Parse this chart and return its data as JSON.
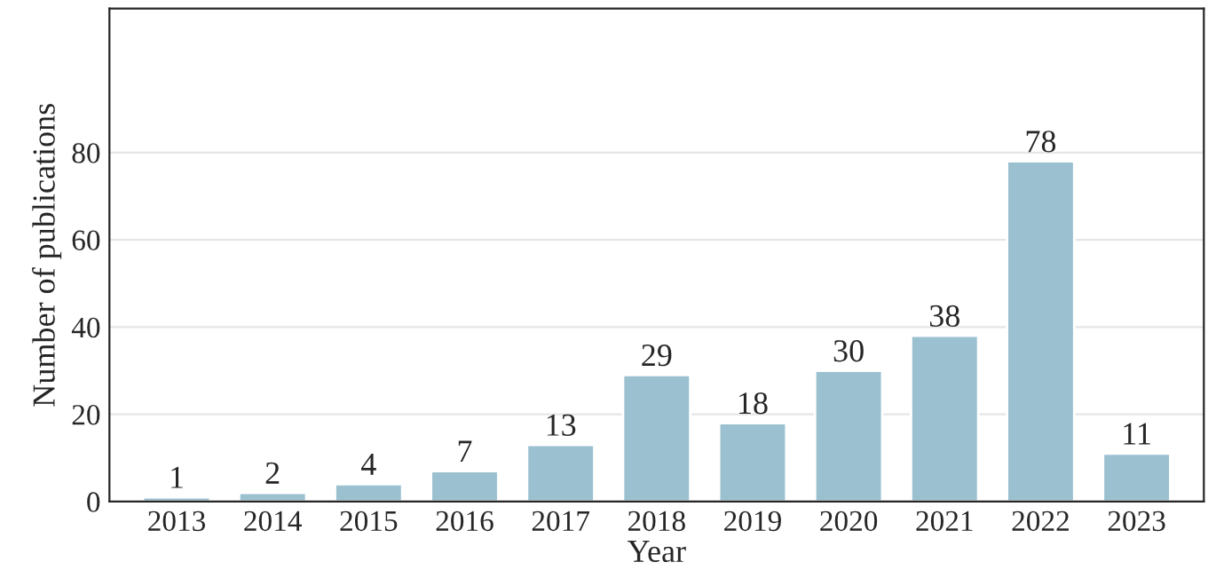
{
  "chart_data": {
    "type": "bar",
    "xlabel": "Year",
    "ylabel": "Number of publications",
    "categories": [
      "2013",
      "2014",
      "2015",
      "2016",
      "2017",
      "2018",
      "2019",
      "2020",
      "2021",
      "2022",
      "2023"
    ],
    "values": [
      1,
      2,
      4,
      7,
      13,
      29,
      18,
      30,
      38,
      78,
      11
    ],
    "color": "#9bc1d1",
    "ylim": [
      0,
      113
    ],
    "yticks": [
      0,
      20,
      40,
      60,
      80
    ],
    "grid": "y",
    "data_labels": true
  }
}
